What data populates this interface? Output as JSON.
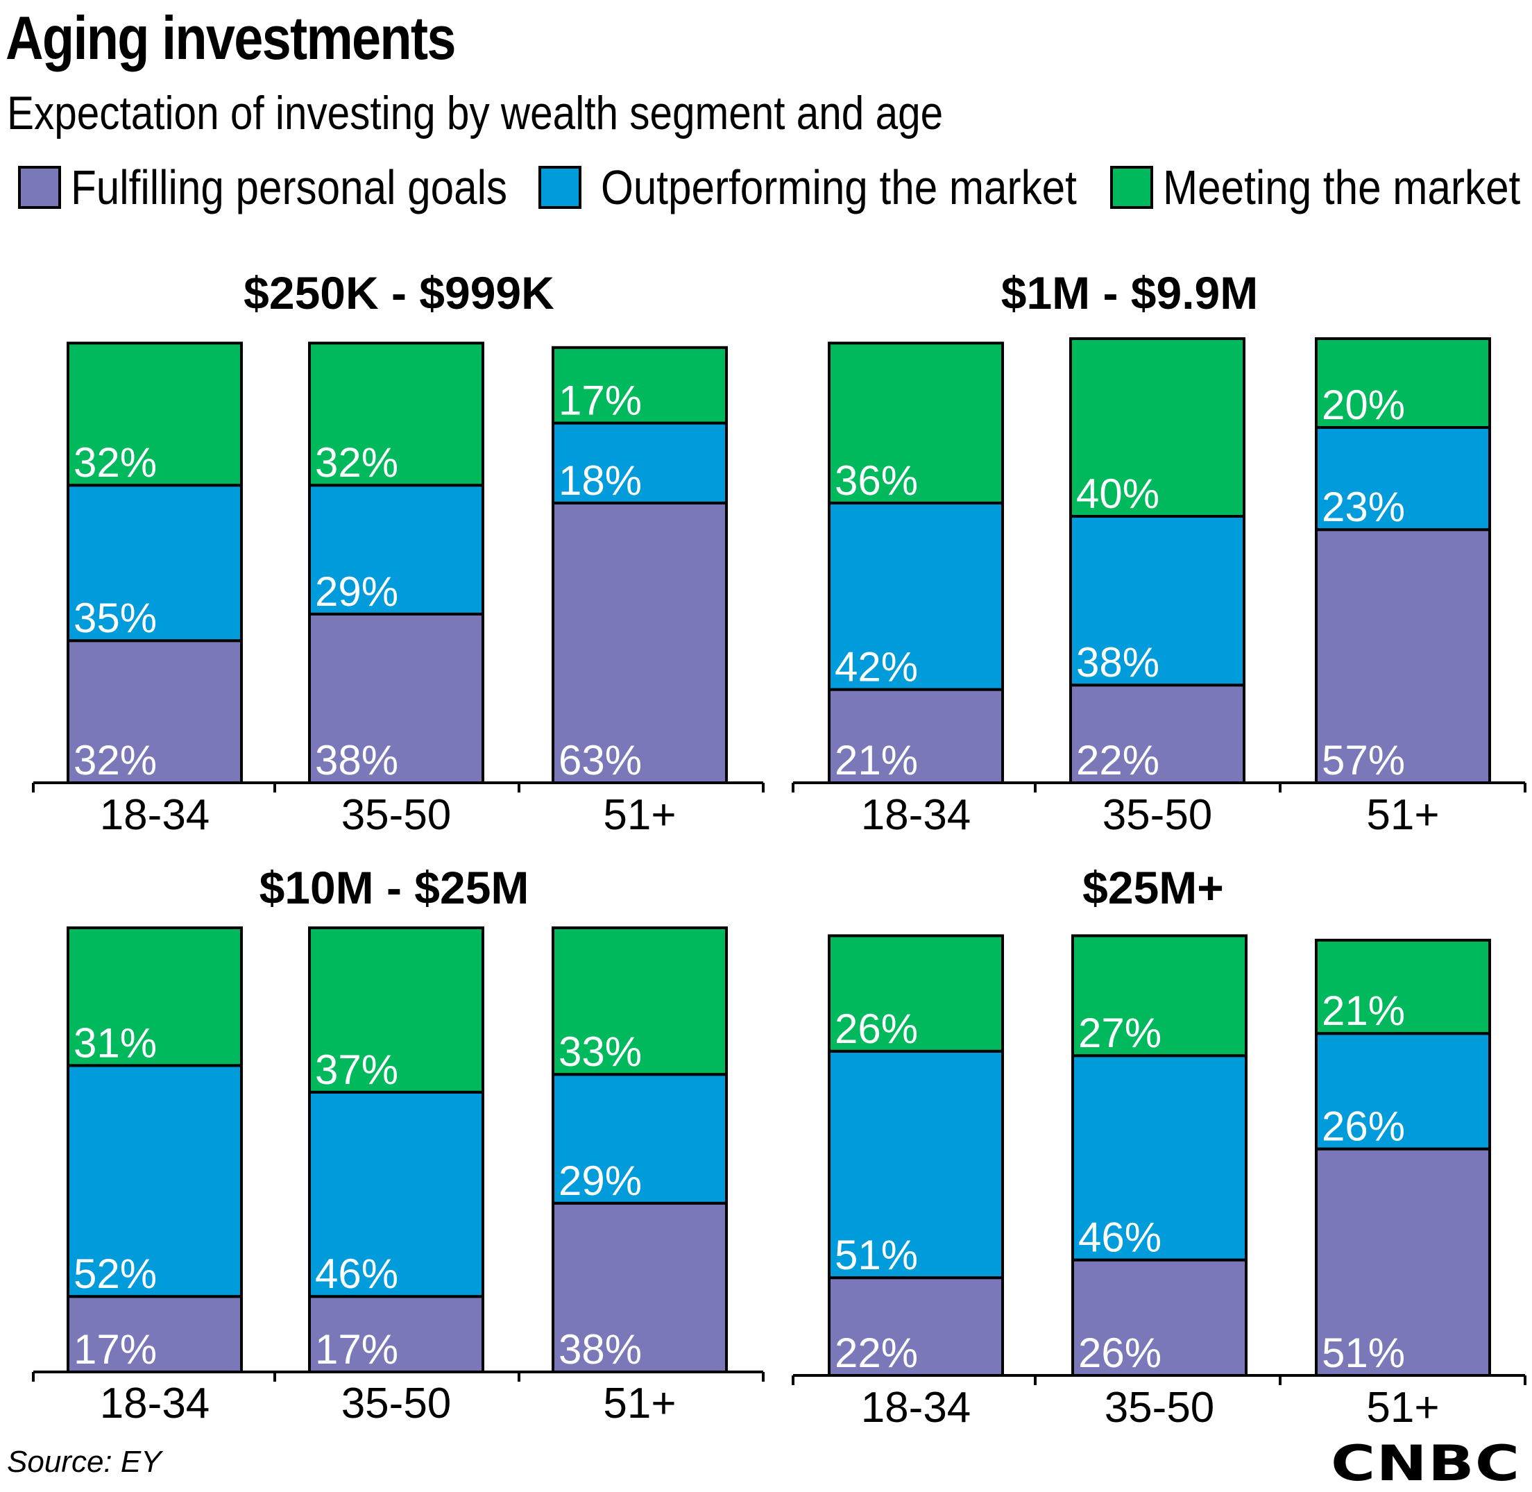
{
  "title": "Aging investments",
  "subtitle": "Expectation of investing by wealth segment and age",
  "legend": [
    {
      "label": "Fulfilling personal goals",
      "color": "#7a78b8"
    },
    {
      "label": "Outperforming the market",
      "color": "#009bdb"
    },
    {
      "label": "Meeting the market",
      "color": "#00b95c"
    }
  ],
  "chart_data": [
    {
      "type": "bar",
      "stacked": true,
      "title": "$250K - $999K",
      "categories": [
        "18-34",
        "35-50",
        "51+"
      ],
      "series": [
        {
          "name": "Fulfilling personal goals",
          "values": [
            32,
            38,
            63
          ],
          "labels": [
            "32%",
            "38%",
            "63%"
          ]
        },
        {
          "name": "Outperforming the market",
          "values": [
            35,
            29,
            18
          ],
          "labels": [
            "35%",
            "29%",
            "18%"
          ]
        },
        {
          "name": "Meeting the market",
          "values": [
            32,
            32,
            17
          ],
          "labels": [
            "32%",
            "32%",
            "17%"
          ]
        }
      ]
    },
    {
      "type": "bar",
      "stacked": true,
      "title": "$1M - $9.9M",
      "categories": [
        "18-34",
        "35-50",
        "51+"
      ],
      "series": [
        {
          "name": "Fulfilling personal goals",
          "values": [
            21,
            22,
            57
          ],
          "labels": [
            "21%",
            "22%",
            "57%"
          ]
        },
        {
          "name": "Outperforming the market",
          "values": [
            42,
            38,
            23
          ],
          "labels": [
            "42%",
            "38%",
            "23%"
          ]
        },
        {
          "name": "Meeting the market",
          "values": [
            36,
            40,
            20
          ],
          "labels": [
            "36%",
            "40%",
            "20%"
          ]
        }
      ]
    },
    {
      "type": "bar",
      "stacked": true,
      "title": "$10M - $25M",
      "categories": [
        "18-34",
        "35-50",
        "51+"
      ],
      "series": [
        {
          "name": "Fulfilling personal goals",
          "values": [
            17,
            17,
            38
          ],
          "labels": [
            "17%",
            "17%",
            "38%"
          ]
        },
        {
          "name": "Outperforming the market",
          "values": [
            52,
            46,
            29
          ],
          "labels": [
            "52%",
            "46%",
            "29%"
          ]
        },
        {
          "name": "Meeting the market",
          "values": [
            31,
            37,
            33
          ],
          "labels": [
            "31%",
            "37%",
            "33%"
          ]
        }
      ]
    },
    {
      "type": "bar",
      "stacked": true,
      "title": "$25M+",
      "categories": [
        "18-34",
        "35-50",
        "51+"
      ],
      "series": [
        {
          "name": "Fulfilling personal goals",
          "values": [
            22,
            26,
            51
          ],
          "labels": [
            "22%",
            "26%",
            "51%"
          ]
        },
        {
          "name": "Outperforming the market",
          "values": [
            51,
            46,
            26
          ],
          "labels": [
            "51%",
            "46%",
            "26%"
          ]
        },
        {
          "name": "Meeting the market",
          "values": [
            26,
            27,
            21
          ],
          "labels": [
            "26%",
            "27%",
            "21%"
          ]
        }
      ]
    }
  ],
  "source": "Source: EY",
  "logo_text": "CNBC"
}
